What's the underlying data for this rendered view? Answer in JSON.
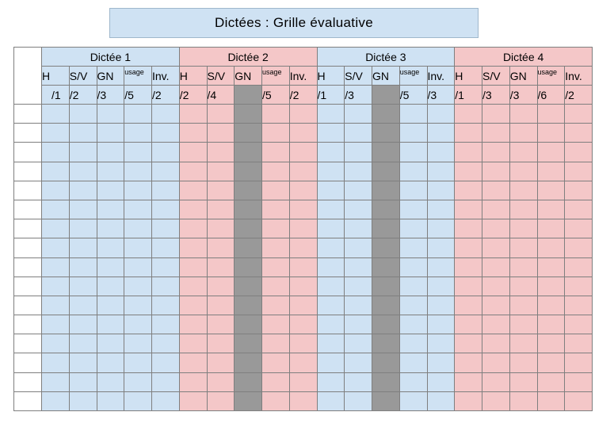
{
  "title": "Dictées : Grille évaluative",
  "dictees": [
    {
      "name": "Dictée 1",
      "color": "#cfe2f3",
      "columns": [
        {
          "label": "H",
          "max": "/1",
          "disabled": false
        },
        {
          "label": "S/V",
          "max": "/2",
          "disabled": false
        },
        {
          "label": "GN",
          "max": "/3",
          "disabled": false
        },
        {
          "label": "usage",
          "max": "/5",
          "disabled": false
        },
        {
          "label": "Inv.",
          "max": "/2",
          "disabled": false
        }
      ]
    },
    {
      "name": "Dictée 2",
      "color": "#f4c7c8",
      "columns": [
        {
          "label": "H",
          "max": "/2",
          "disabled": false
        },
        {
          "label": "S/V",
          "max": "/4",
          "disabled": false
        },
        {
          "label": "GN",
          "max": "",
          "disabled": true
        },
        {
          "label": "usage",
          "max": "/5",
          "disabled": false
        },
        {
          "label": "Inv.",
          "max": "/2",
          "disabled": false
        }
      ]
    },
    {
      "name": "Dictée 3",
      "color": "#cfe2f3",
      "columns": [
        {
          "label": "H",
          "max": "/1",
          "disabled": false
        },
        {
          "label": "S/V",
          "max": "/3",
          "disabled": false
        },
        {
          "label": "GN",
          "max": "",
          "disabled": true
        },
        {
          "label": "usage",
          "max": "/5",
          "disabled": false
        },
        {
          "label": "Inv.",
          "max": "/3",
          "disabled": false
        }
      ]
    },
    {
      "name": "Dictée 4",
      "color": "#f4c7c8",
      "columns": [
        {
          "label": "H",
          "max": "/1",
          "disabled": false
        },
        {
          "label": "S/V",
          "max": "/3",
          "disabled": false
        },
        {
          "label": "GN",
          "max": "/3",
          "disabled": false
        },
        {
          "label": "usage",
          "max": "/6",
          "disabled": false
        },
        {
          "label": "Inv.",
          "max": "/2",
          "disabled": false
        }
      ]
    }
  ],
  "student_rows": 16,
  "colors": {
    "blue": "#cfe2f3",
    "pink": "#f4c7c8",
    "gray": "#999999",
    "grid_line": "#7f7f7f"
  }
}
